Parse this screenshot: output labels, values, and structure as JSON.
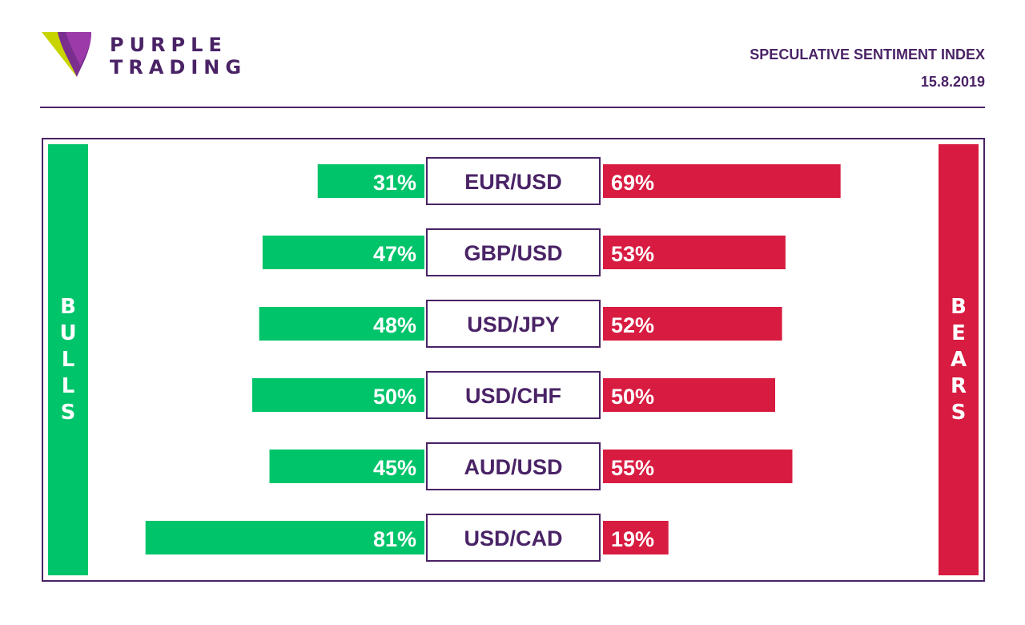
{
  "brand": {
    "line1": "PURPLE",
    "line2": "TRADING",
    "logo_icon": "purple-trading-logo-icon"
  },
  "header": {
    "title": "SPECULATIVE SENTIMENT INDEX",
    "date": "15.8.2019"
  },
  "colors": {
    "purple": "#4a2366",
    "bulls": "#00c46a",
    "bears": "#d81b40"
  },
  "sides": {
    "bulls": "BULLS",
    "bears": "BEARS"
  },
  "chart_data": {
    "type": "bar",
    "categories": [
      "EUR/USD",
      "GBP/USD",
      "USD/JPY",
      "USD/CHF",
      "AUD/USD",
      "USD/CAD"
    ],
    "series": [
      {
        "name": "BULLS",
        "values": [
          31,
          47,
          48,
          50,
          45,
          81
        ]
      },
      {
        "name": "BEARS",
        "values": [
          69,
          53,
          52,
          50,
          55,
          19
        ]
      }
    ],
    "labels_bulls": [
      "31%",
      "47%",
      "48%",
      "50%",
      "45%",
      "81%"
    ],
    "labels_bears": [
      "69%",
      "53%",
      "52%",
      "50%",
      "55%",
      "19%"
    ],
    "orientation": "horizontal-diverging",
    "xlim": [
      0,
      100
    ]
  }
}
